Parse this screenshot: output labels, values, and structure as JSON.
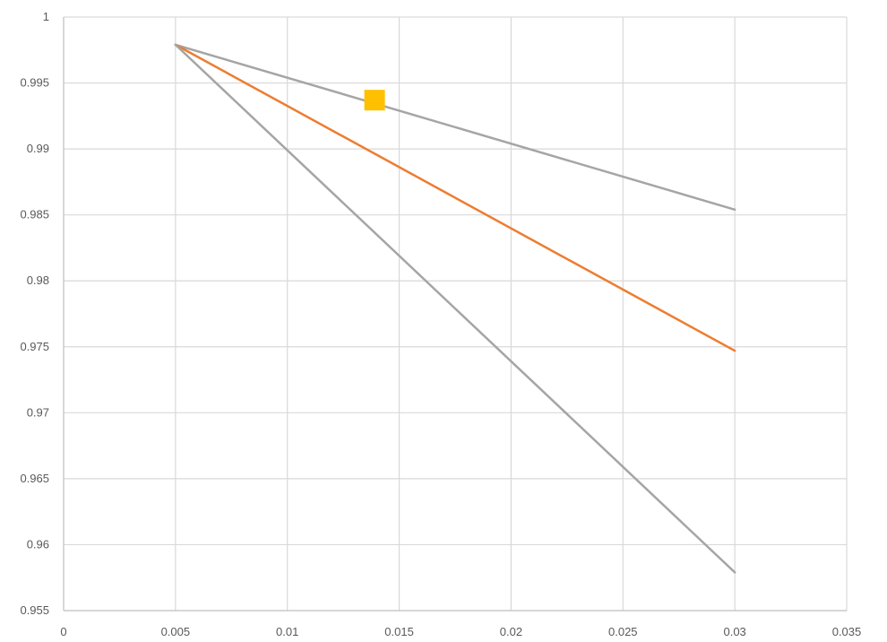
{
  "chart_data": {
    "type": "line",
    "title": "",
    "xlabel": "",
    "ylabel": "",
    "xlim": [
      0,
      0.035
    ],
    "ylim": [
      0.955,
      1
    ],
    "x_ticks": [
      "0",
      "0.005",
      "0.01",
      "0.015",
      "0.02",
      "0.025",
      "0.03",
      "0.035"
    ],
    "y_ticks": [
      "0.955",
      "0.96",
      "0.965",
      "0.97",
      "0.975",
      "0.98",
      "0.985",
      "0.99",
      "0.995",
      "1"
    ],
    "grid": true,
    "legend": "none",
    "series": [
      {
        "color": "#a5a5a5",
        "marker": "none",
        "points": [
          [
            0.005,
            0.9979
          ],
          [
            0.03,
            0.9854
          ]
        ]
      },
      {
        "color": "#ed7d31",
        "marker": "none",
        "points": [
          [
            0.005,
            0.9979
          ],
          [
            0.03,
            0.9747
          ]
        ]
      },
      {
        "color": "#a5a5a5",
        "marker": "none",
        "points": [
          [
            0.005,
            0.9979
          ],
          [
            0.03,
            0.9579
          ]
        ]
      },
      {
        "color": "#ffc000",
        "marker": "square",
        "points": [
          [
            0.0139,
            0.9937
          ]
        ]
      }
    ]
  }
}
